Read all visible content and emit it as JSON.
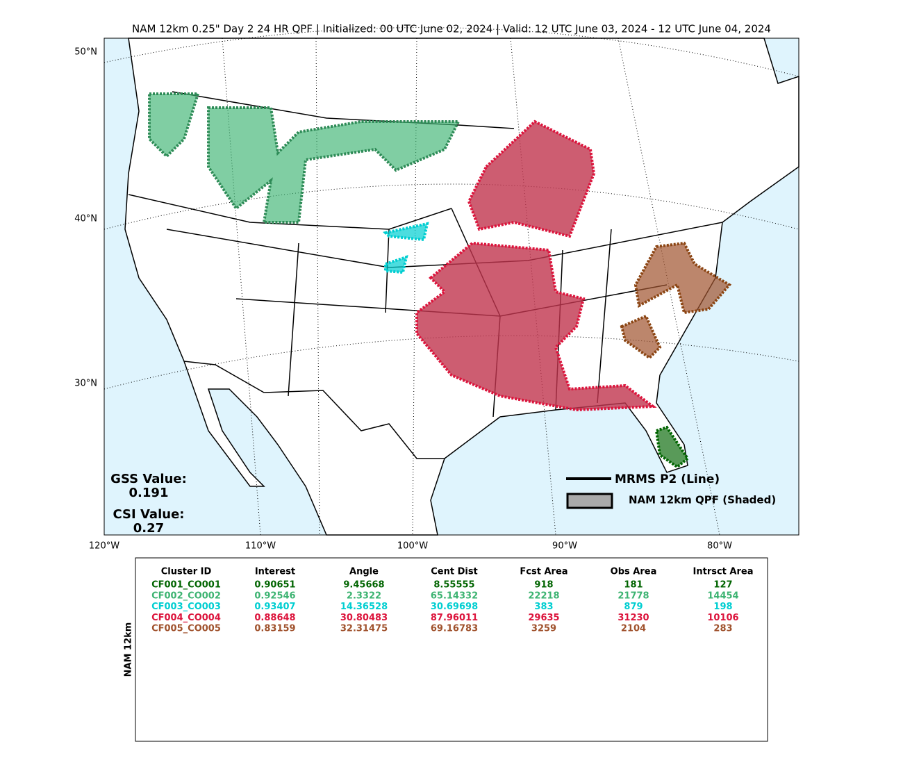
{
  "title": "NAM 12km 0.25\" Day 2 24 HR QPF | Initialized: 00 UTC June 02, 2024 | Valid: 12 UTC June 03, 2024 - 12 UTC June 04, 2024",
  "map": {
    "lat_labels": [
      "50°N",
      "40°N",
      "30°N"
    ],
    "lon_labels": [
      "120°W",
      "110°W",
      "100°W",
      "90°W",
      "80°W"
    ],
    "gss": {
      "label": "GSS Value:",
      "value": 0.191
    },
    "csi": {
      "label": "CSI Value:",
      "value": 0.27
    },
    "legend": {
      "line": "MRMS P2 (Line)",
      "shaded": "NAM 12km QPF (Shaded)"
    }
  },
  "table": {
    "side_label": "NAM 12km",
    "headers": [
      "Cluster ID",
      "Interest",
      "Angle",
      "Cent Dist",
      "Fcst Area",
      "Obs Area",
      "Intrsct Area"
    ],
    "rows": [
      {
        "color": "#006400",
        "cells": [
          "CF001_CO001",
          0.90651,
          9.45668,
          8.55555,
          918,
          181,
          127
        ]
      },
      {
        "color": "#3cb371",
        "cells": [
          "CF002_CO002",
          0.92546,
          2.3322,
          65.14332,
          22218,
          21778,
          14454
        ]
      },
      {
        "color": "#00ced1",
        "cells": [
          "CF003_CO003",
          0.93407,
          14.36528,
          30.69698,
          383,
          879,
          198
        ]
      },
      {
        "color": "#dc143c",
        "cells": [
          "CF004_CO004",
          0.88648,
          30.80483,
          87.96011,
          29635,
          31230,
          10106
        ]
      },
      {
        "color": "#a0522d",
        "cells": [
          "CF005_CO005",
          0.83159,
          32.31475,
          69.16783,
          3259,
          2104,
          283
        ]
      }
    ]
  }
}
